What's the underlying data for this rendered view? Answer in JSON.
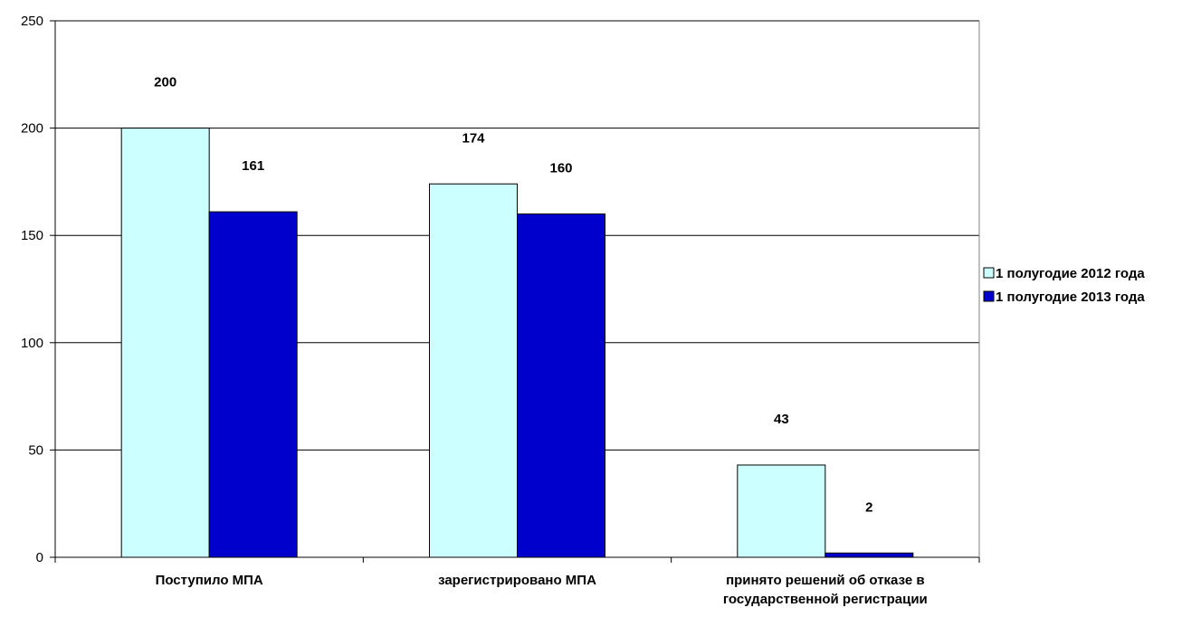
{
  "chart_data": {
    "type": "bar",
    "categories": [
      "Поступило МПА",
      "зарегистрировано МПА",
      "принято решений об отказе в государственной регистрации"
    ],
    "category_lines": [
      [
        "Поступило МПА"
      ],
      [
        "зарегистрировано МПА"
      ],
      [
        "принято решений об отказе в",
        "государственной регистрации"
      ]
    ],
    "series": [
      {
        "name": "1 полугодие 2012 года",
        "values": [
          200,
          174,
          43
        ],
        "color": "#ccffff"
      },
      {
        "name": "1 полугодие 2013 года",
        "values": [
          161,
          160,
          2
        ],
        "color": "#0000cc"
      }
    ],
    "ylim": [
      0,
      250
    ],
    "yticks": [
      0,
      50,
      100,
      150,
      200,
      250
    ],
    "grid": true,
    "legend_position": "right",
    "data_labels": true,
    "title": "",
    "xlabel": "",
    "ylabel": ""
  }
}
